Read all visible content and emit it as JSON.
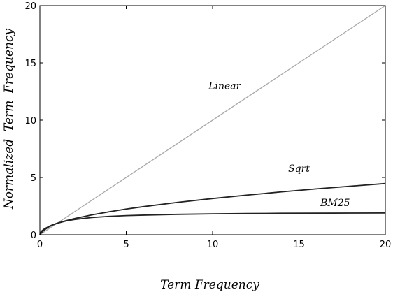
{
  "chart_data": {
    "type": "line",
    "title": "",
    "xlabel": "Term Frequency",
    "ylabel": "Normalized  Term  Frequency",
    "xlim": [
      0,
      20
    ],
    "ylim": [
      0,
      20
    ],
    "xticks": [
      0,
      5,
      10,
      15,
      20
    ],
    "yticks": [
      0,
      5,
      10,
      15,
      20
    ],
    "grid": false,
    "legend": "none",
    "series": [
      {
        "name": "Linear",
        "color": "#a8a8a8",
        "label_at": [
          10.7,
          12.7
        ],
        "x": [
          0,
          20
        ],
        "y": [
          0,
          20
        ]
      },
      {
        "name": "Sqrt",
        "color": "#222222",
        "label_at": [
          15.0,
          5.5
        ],
        "x": [
          0,
          0.05,
          0.1,
          0.25,
          0.5,
          0.75,
          1,
          1.5,
          2,
          3,
          4,
          5,
          6,
          8,
          10,
          12,
          14,
          16,
          18,
          20
        ],
        "y": [
          0,
          0.22,
          0.32,
          0.5,
          0.71,
          0.87,
          1.0,
          1.22,
          1.41,
          1.73,
          2.0,
          2.24,
          2.45,
          2.83,
          3.16,
          3.46,
          3.74,
          4.0,
          4.24,
          4.47
        ]
      },
      {
        "name": "BM25",
        "color": "#222222",
        "label_at": [
          17.1,
          2.5
        ],
        "x": [
          0,
          0.05,
          0.1,
          0.25,
          0.5,
          0.75,
          1,
          1.5,
          2,
          3,
          4,
          5,
          6,
          8,
          10,
          12,
          14,
          16,
          18,
          20
        ],
        "y": [
          0,
          0.1,
          0.19,
          0.4,
          0.67,
          0.86,
          1.0,
          1.2,
          1.33,
          1.5,
          1.6,
          1.67,
          1.71,
          1.78,
          1.82,
          1.85,
          1.87,
          1.88,
          1.89,
          1.9
        ]
      }
    ]
  }
}
